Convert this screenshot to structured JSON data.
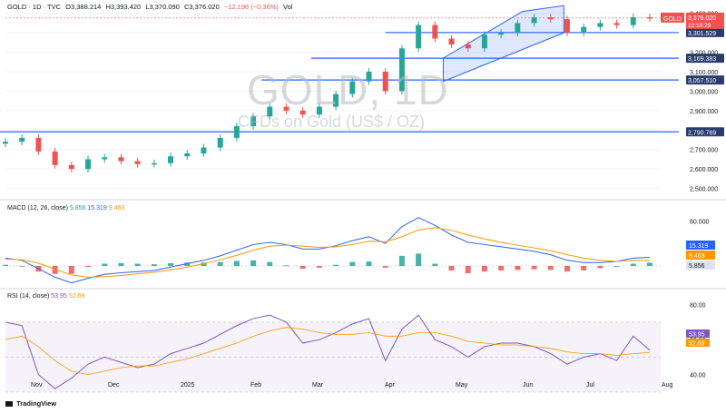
{
  "header": {
    "symbol": "GOLD · 1D · TVC",
    "open": "O3,388.214",
    "high": "H3,393.420",
    "low": "L3,370.090",
    "close": "C3,376.020",
    "change": "−12.196 (−0.36%)",
    "vol": "Vol"
  },
  "watermark": {
    "title": "GOLD, 1D",
    "subtitle": "CFDs on Gold (US$ / OZ)"
  },
  "macd": {
    "label": "MACD (12, 26, close)",
    "v1": "5.856",
    "v2": "15.319",
    "v3": "9.463"
  },
  "rsi": {
    "label": "RSI (14, close)",
    "v1": "53.95",
    "v2": "52.69"
  },
  "footer": {
    "brand": "TradingView"
  },
  "colors": {
    "up": "#26a69a",
    "down": "#ef5350",
    "line": "#2962ff",
    "signal": "#ff9800",
    "rsi": "#7e57c2",
    "channel": "#2962ff"
  },
  "chart_data": [
    {
      "type": "line",
      "title": "GOLD, 1D",
      "xlabel": "",
      "ylabel": "",
      "x_ticks": [
        "Nov",
        "Dec",
        "2025",
        "Feb",
        "Mar",
        "Apr",
        "May",
        "Jun",
        "Jul",
        "Aug"
      ],
      "y_ticks": [
        2500,
        2600,
        2700,
        2800,
        2900,
        3000,
        3100,
        3200,
        3300,
        3400
      ],
      "y_tick_labels": [
        "2,500.000",
        "2,600.000",
        "2,700.000",
        "2,800.000",
        "2,900.000",
        "3,000.000",
        "3,100.000",
        "3,200.000",
        "3,300.000",
        "3,400.000"
      ],
      "ylim": [
        2470,
        3450
      ],
      "horizontal_levels": [
        {
          "value": 3301.529,
          "label": "3,301.529"
        },
        {
          "value": 3169.383,
          "label": "3,169.383"
        },
        {
          "value": 3057.51,
          "label": "3,057.510"
        },
        {
          "value": 2790.769,
          "label": "2,790.769"
        }
      ],
      "current_price": {
        "label": "GOLD",
        "value": "3,376.020",
        "countdown": "12:10:29"
      },
      "series": [
        {
          "name": "GOLD",
          "x": [
            "Oct 28",
            "Nov 4",
            "Nov 11",
            "Nov 18",
            "Nov 25",
            "Dec 2",
            "Dec 9",
            "Dec 16",
            "Dec 23",
            "Dec 30",
            "Jan 6",
            "Jan 13",
            "Jan 20",
            "Jan 27",
            "Feb 3",
            "Feb 10",
            "Feb 17",
            "Feb 24",
            "Mar 3",
            "Mar 10",
            "Mar 17",
            "Mar 24",
            "Mar 31",
            "Apr 7",
            "Apr 14",
            "Apr 21",
            "Apr 28",
            "May 5",
            "May 12",
            "May 19",
            "May 26",
            "Jun 2",
            "Jun 9",
            "Jun 16",
            "Jun 23",
            "Jun 30",
            "Jul 7",
            "Jul 14",
            "Jul 21",
            "Jul 25"
          ],
          "values": [
            2740,
            2760,
            2690,
            2620,
            2600,
            2650,
            2660,
            2640,
            2625,
            2630,
            2665,
            2680,
            2710,
            2760,
            2820,
            2870,
            2920,
            2900,
            2880,
            2920,
            2985,
            3050,
            3100,
            3000,
            3220,
            3340,
            3270,
            3240,
            3220,
            3290,
            3300,
            3350,
            3380,
            3370,
            3300,
            3330,
            3350,
            3340,
            3380,
            3376
          ]
        }
      ]
    },
    {
      "type": "line",
      "title": "MACD (12, 26, close)",
      "y_ticks": [
        80
      ],
      "y_tick_labels": [
        "80.000"
      ],
      "series": [
        {
          "name": "MACD",
          "values": [
            14,
            10,
            -5,
            -20,
            -30,
            -22,
            -15,
            -12,
            -10,
            -8,
            -2,
            4,
            10,
            18,
            28,
            38,
            42,
            38,
            30,
            30,
            36,
            45,
            52,
            40,
            70,
            86,
            72,
            55,
            42,
            38,
            34,
            30,
            26,
            20,
            10,
            6,
            6,
            8,
            14,
            15.3
          ]
        },
        {
          "name": "Signal",
          "values": [
            12,
            11,
            5,
            -6,
            -16,
            -20,
            -19,
            -17,
            -14,
            -11,
            -7,
            -2,
            4,
            11,
            19,
            28,
            35,
            37,
            35,
            33,
            34,
            38,
            44,
            43,
            52,
            64,
            68,
            63,
            55,
            48,
            42,
            37,
            32,
            27,
            20,
            14,
            10,
            8,
            10,
            9.5
          ]
        }
      ],
      "histogram": [
        2,
        -1,
        -10,
        -14,
        -14,
        -2,
        4,
        5,
        4,
        3,
        5,
        6,
        6,
        7,
        9,
        10,
        7,
        1,
        -5,
        -3,
        2,
        7,
        8,
        -3,
        18,
        22,
        4,
        -8,
        -13,
        -10,
        -8,
        -7,
        -6,
        -7,
        -10,
        -8,
        -4,
        0,
        4,
        5.9
      ]
    },
    {
      "type": "line",
      "title": "RSI (14, close)",
      "y_ticks": [
        40,
        60,
        80
      ],
      "y_tick_labels": [
        "40.00",
        "60.00",
        "80.00"
      ],
      "ylim": [
        30,
        85
      ],
      "bands": [
        30,
        70
      ],
      "series": [
        {
          "name": "RSI",
          "values": [
            70,
            68,
            40,
            32,
            38,
            46,
            50,
            47,
            44,
            46,
            52,
            55,
            58,
            63,
            68,
            72,
            74,
            70,
            58,
            60,
            64,
            69,
            72,
            48,
            66,
            74,
            60,
            56,
            50,
            56,
            58,
            58,
            56,
            52,
            46,
            50,
            52,
            48,
            62,
            53.95
          ]
        },
        {
          "name": "RSI-based MA",
          "values": [
            60,
            62,
            56,
            48,
            42,
            40,
            42,
            44,
            45,
            45,
            47,
            49,
            52,
            55,
            58,
            62,
            65,
            67,
            66,
            64,
            63,
            63,
            64,
            62,
            62,
            64,
            64,
            62,
            59,
            58,
            57,
            57,
            56,
            55,
            53,
            52,
            52,
            51,
            52,
            52.69
          ]
        }
      ]
    }
  ]
}
